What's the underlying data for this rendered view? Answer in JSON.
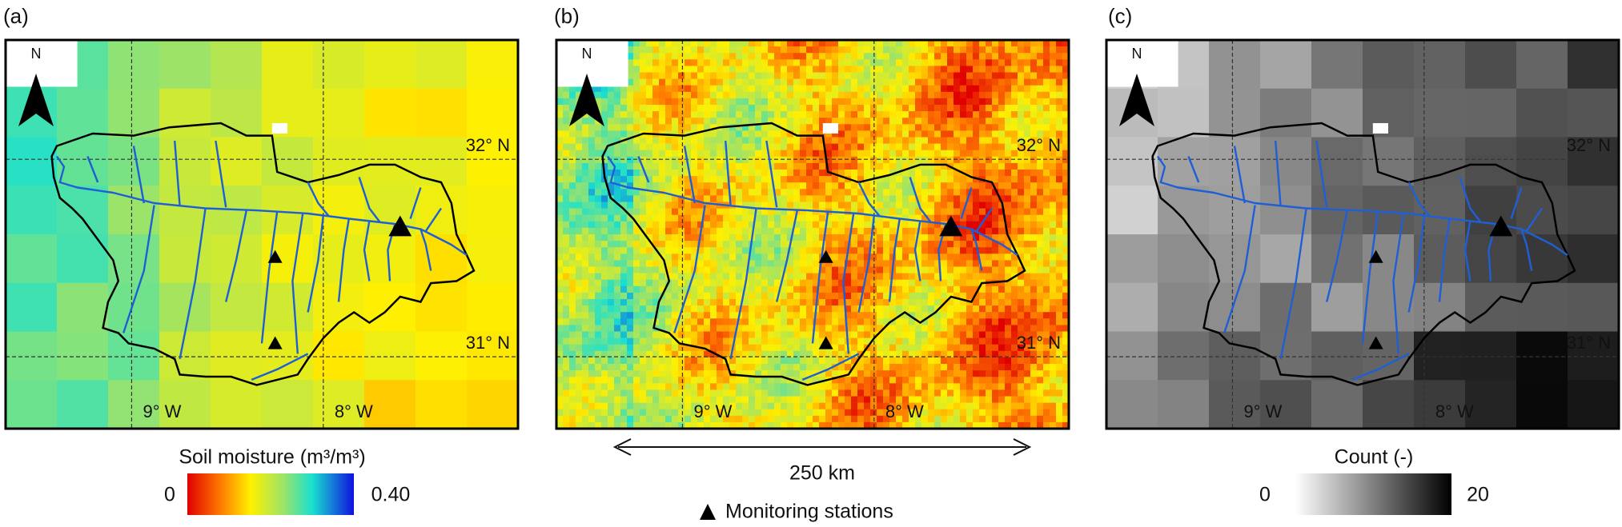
{
  "panels": [
    {
      "label": "(a)",
      "north": "N",
      "lat_labels": [
        "32° N",
        "31° N"
      ],
      "lon_labels": [
        "9° W",
        "8° W"
      ]
    },
    {
      "label": "(b)",
      "north": "N",
      "lat_labels": [
        "32° N",
        "31° N"
      ],
      "lon_labels": [
        "9° W",
        "8° W"
      ]
    },
    {
      "label": "(c)",
      "north": "N",
      "lat_labels": [
        "32° N",
        "31° N"
      ],
      "lon_labels": [
        "9° W",
        "8° W"
      ]
    }
  ],
  "colorbars": [
    {
      "title": "Soil moisture (m³/m³)",
      "min": "0",
      "max": "0.40"
    },
    {
      "title": "Count (-)",
      "min": "0",
      "max": "20"
    }
  ],
  "scale_bar": "250 km",
  "legend": "Monitoring stations"
}
